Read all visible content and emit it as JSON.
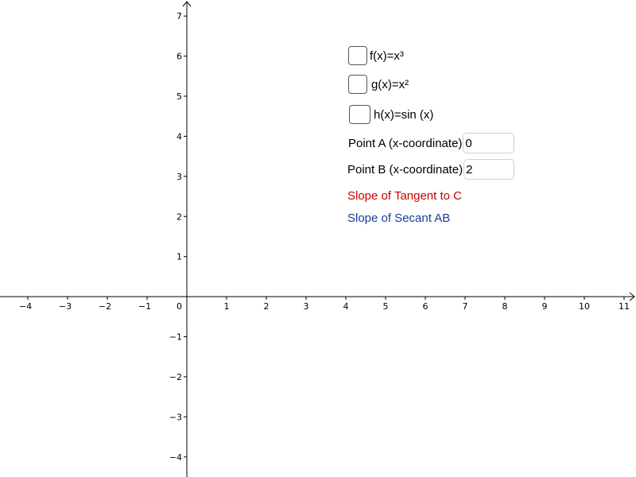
{
  "graph": {
    "x_range": [
      -4.7,
      11.3
    ],
    "y_range": [
      -4.5,
      7.4
    ],
    "x_ticks": [
      -4,
      -3,
      -2,
      -1,
      1,
      2,
      3,
      4,
      5,
      6,
      7,
      8,
      9,
      10,
      11
    ],
    "y_ticks": [
      -4,
      -3,
      -2,
      -1,
      1,
      2,
      3,
      4,
      5,
      6,
      7
    ],
    "origin_label": "0",
    "minus_sign": "−",
    "axis_color": "#000000"
  },
  "checkboxes": [
    {
      "label": "f(x)=x³",
      "checked": false
    },
    {
      "label": "g(x)=x²",
      "checked": false
    },
    {
      "label": "h(x)=sin (x)",
      "checked": false
    }
  ],
  "inputs": [
    {
      "label": "Point A (x-coordinate)",
      "value": "0"
    },
    {
      "label": "Point B (x-coordinate)",
      "value": "2"
    }
  ],
  "texts": {
    "tangent": {
      "label": "Slope of Tangent to C",
      "color": "#cc0000"
    },
    "secant": {
      "label": "Slope of Secant AB",
      "color": "#1a3c9c"
    }
  }
}
